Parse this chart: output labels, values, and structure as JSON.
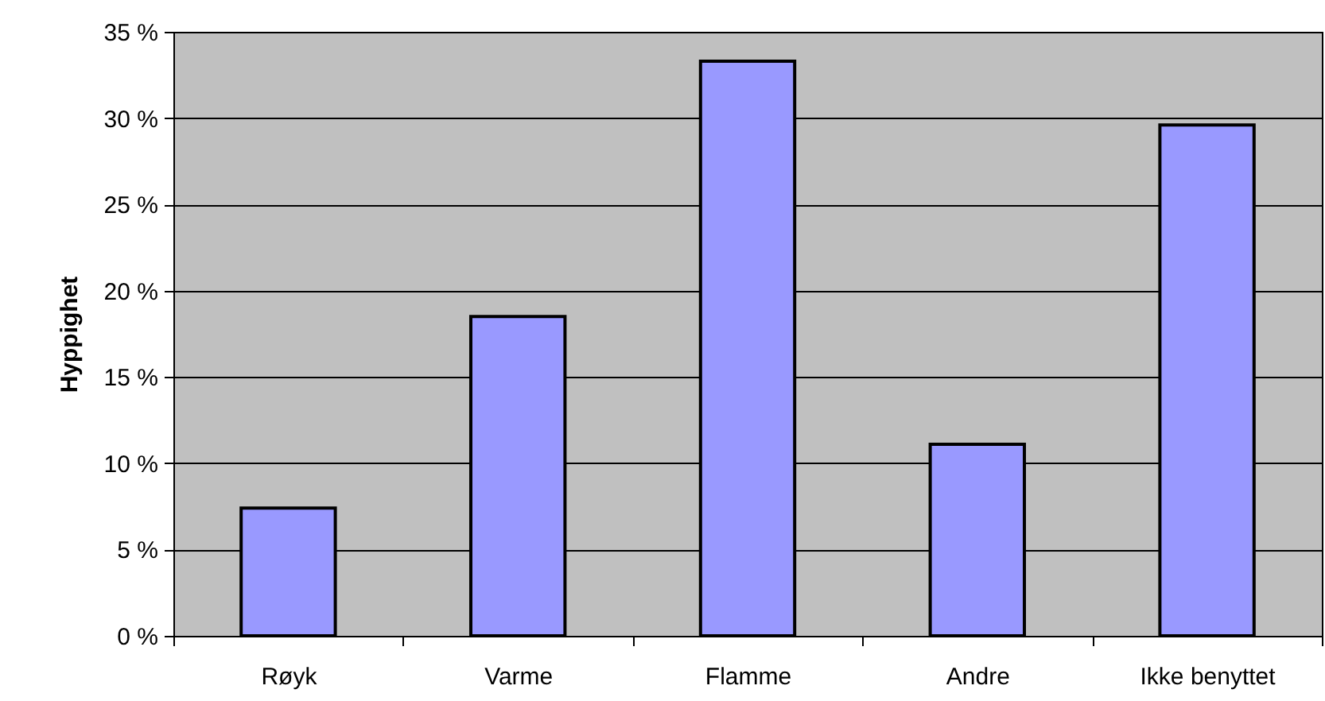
{
  "chart_data": {
    "type": "bar",
    "ylabel": "Hyppighet",
    "categories": [
      "Røyk",
      "Varme",
      "Flamme",
      "Andre",
      "Ikke benyttet"
    ],
    "values": [
      7.4,
      18.5,
      33.3,
      11.1,
      29.6
    ],
    "color": "#9999ff",
    "ylim": [
      0,
      35
    ],
    "yticks": [
      {
        "value": 0,
        "label": "0 %"
      },
      {
        "value": 5,
        "label": "5 %"
      },
      {
        "value": 10,
        "label": "10 %"
      },
      {
        "value": 15,
        "label": "15 %"
      },
      {
        "value": 20,
        "label": "20 %"
      },
      {
        "value": 25,
        "label": "25 %"
      },
      {
        "value": 30,
        "label": "30 %"
      },
      {
        "value": 35,
        "label": "35 %"
      }
    ],
    "grid": "y"
  }
}
